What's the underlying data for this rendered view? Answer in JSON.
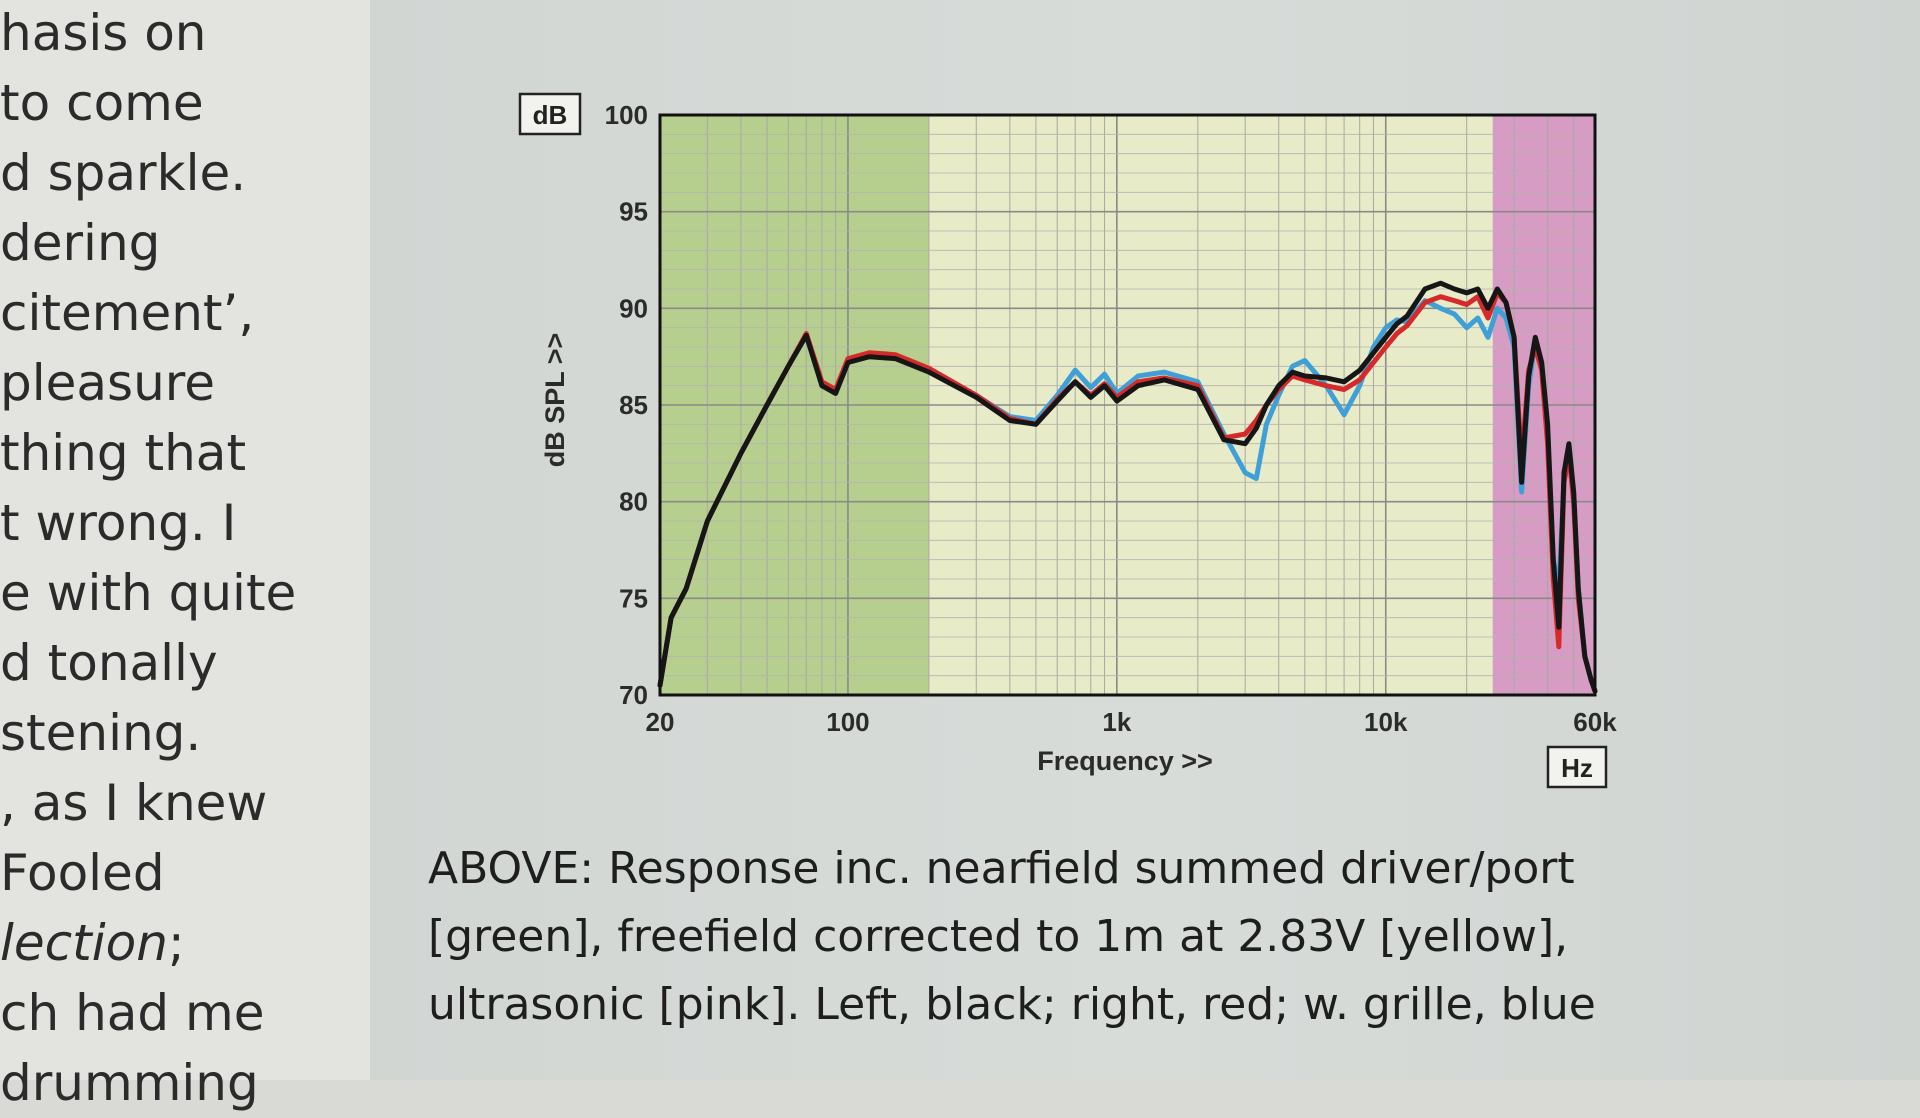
{
  "body_text": {
    "lines": [
      "hasis on",
      " to come",
      "d sparkle.",
      "dering",
      "citement’,",
      " pleasure",
      "thing that",
      "t wrong. I",
      "e with quite",
      "d tonally",
      "stening.",
      ", as I knew",
      " Fooled",
      "lection;",
      "ch had me",
      "drumming"
    ],
    "italic_line": "lection"
  },
  "caption": {
    "lines": [
      "ABOVE: Response inc. nearfield summed driver/port",
      "[green], freefield corrected to 1m at 2.83V [yellow],",
      "ultrasonic [pink]. Left, black; right, red; w. grille, blue"
    ]
  },
  "chart_data": {
    "type": "line",
    "y_unit_box": "dB",
    "x_unit_box": "Hz",
    "ylabel": "dB SPL >>",
    "xlabel": "Frequency >>",
    "ylim": [
      70,
      100
    ],
    "xlim": [
      20,
      60000
    ],
    "x_scale": "log",
    "y_ticks": [
      "100",
      "95",
      "90",
      "85",
      "80",
      "75",
      "70"
    ],
    "x_ticks": [
      {
        "value": 20,
        "label": "20"
      },
      {
        "value": 100,
        "label": "100"
      },
      {
        "value": 1000,
        "label": "1k"
      },
      {
        "value": 10000,
        "label": "10k"
      },
      {
        "value": 60000,
        "label": "60k"
      }
    ],
    "grid": true,
    "bands": [
      {
        "from": 20,
        "to": 200,
        "color": "#b7cf8e"
      },
      {
        "from": 200,
        "to": 25000,
        "color": "#e8ebc8"
      },
      {
        "from": 25000,
        "to": 60000,
        "color": "#d69cc4"
      }
    ],
    "series": [
      {
        "name": "w. grille",
        "color": "#3fa0d8",
        "x": [
          20,
          22,
          25,
          30,
          40,
          50,
          60,
          70,
          80,
          90,
          100,
          120,
          150,
          200,
          300,
          400,
          500,
          600,
          700,
          800,
          900,
          1000,
          1200,
          1500,
          2000,
          2500,
          3000,
          3300,
          3600,
          4000,
          4500,
          5000,
          6000,
          7000,
          8000,
          9000,
          10000,
          11000,
          12000,
          14000,
          16000,
          18000,
          20000,
          22000,
          24000,
          26000,
          28000,
          30000,
          32000,
          34000,
          36000,
          38000,
          40000,
          42000,
          44000,
          46000,
          48000,
          50000,
          52000,
          55000,
          58000,
          60000
        ],
        "y": [
          70.5,
          74,
          75.5,
          79,
          82.5,
          85,
          87,
          88.6,
          86,
          85.7,
          87.3,
          87.6,
          87.5,
          86.8,
          85.5,
          84.4,
          84.2,
          85.5,
          86.8,
          85.9,
          86.6,
          85.6,
          86.5,
          86.7,
          86.2,
          83.5,
          81.5,
          81.2,
          84,
          85.5,
          87,
          87.3,
          86,
          84.5,
          86,
          88,
          89,
          89.4,
          89.3,
          90.4,
          90,
          89.7,
          89,
          89.5,
          88.5,
          90,
          89.5,
          88,
          80.5,
          86,
          88.3,
          87,
          83.3,
          77,
          75.5,
          81,
          82.5,
          80,
          75.5,
          72,
          70.8,
          70.2
        ]
      },
      {
        "name": "right",
        "color": "#d62a2a",
        "x": [
          20,
          22,
          25,
          30,
          40,
          50,
          60,
          70,
          80,
          90,
          100,
          120,
          150,
          200,
          300,
          400,
          500,
          600,
          700,
          800,
          900,
          1000,
          1200,
          1500,
          2000,
          2500,
          3000,
          3300,
          3600,
          4000,
          4500,
          5000,
          6000,
          7000,
          8000,
          9000,
          10000,
          11000,
          12000,
          14000,
          16000,
          18000,
          20000,
          22000,
          24000,
          26000,
          28000,
          30000,
          32000,
          34000,
          36000,
          38000,
          40000,
          42000,
          44000,
          46000,
          48000,
          50000,
          52000,
          55000,
          58000,
          60000
        ],
        "y": [
          70.5,
          74,
          75.5,
          79,
          82.5,
          85,
          87,
          88.7,
          86.2,
          85.8,
          87.4,
          87.7,
          87.6,
          86.9,
          85.5,
          84.3,
          84,
          85.3,
          86.2,
          85.5,
          86.1,
          85.4,
          86.2,
          86.4,
          86,
          83.3,
          83.5,
          84.2,
          85,
          85.8,
          86.5,
          86.3,
          86,
          85.8,
          86.3,
          87.2,
          88,
          88.7,
          89.1,
          90.3,
          90.6,
          90.4,
          90.2,
          90.6,
          89.5,
          90.8,
          90.3,
          88.5,
          82,
          86.8,
          88,
          86.8,
          83,
          76,
          72.5,
          81,
          82.5,
          80,
          75,
          72,
          70.8,
          70.2
        ]
      },
      {
        "name": "left",
        "color": "#161616",
        "x": [
          20,
          22,
          25,
          30,
          40,
          50,
          60,
          70,
          80,
          90,
          100,
          120,
          150,
          200,
          300,
          400,
          500,
          600,
          700,
          800,
          900,
          1000,
          1200,
          1500,
          2000,
          2500,
          3000,
          3300,
          3600,
          4000,
          4500,
          5000,
          6000,
          7000,
          8000,
          9000,
          10000,
          11000,
          12000,
          14000,
          16000,
          18000,
          20000,
          22000,
          24000,
          26000,
          28000,
          30000,
          32000,
          34000,
          36000,
          38000,
          40000,
          42000,
          44000,
          46000,
          48000,
          50000,
          52000,
          55000,
          58000,
          60000
        ],
        "y": [
          70.5,
          74,
          75.5,
          79,
          82.5,
          85,
          87,
          88.6,
          86,
          85.6,
          87.2,
          87.5,
          87.4,
          86.7,
          85.4,
          84.2,
          84,
          85.2,
          86.2,
          85.4,
          86,
          85.2,
          86,
          86.3,
          85.8,
          83.2,
          83,
          83.8,
          85,
          86,
          86.7,
          86.5,
          86.4,
          86.2,
          86.8,
          87.7,
          88.5,
          89.2,
          89.6,
          91,
          91.3,
          91,
          90.8,
          91,
          90,
          91,
          90.3,
          88.5,
          81,
          86.5,
          88.5,
          87.2,
          84,
          77,
          73.5,
          81.5,
          83,
          80.5,
          75.5,
          72,
          70.8,
          70.2
        ]
      }
    ]
  }
}
